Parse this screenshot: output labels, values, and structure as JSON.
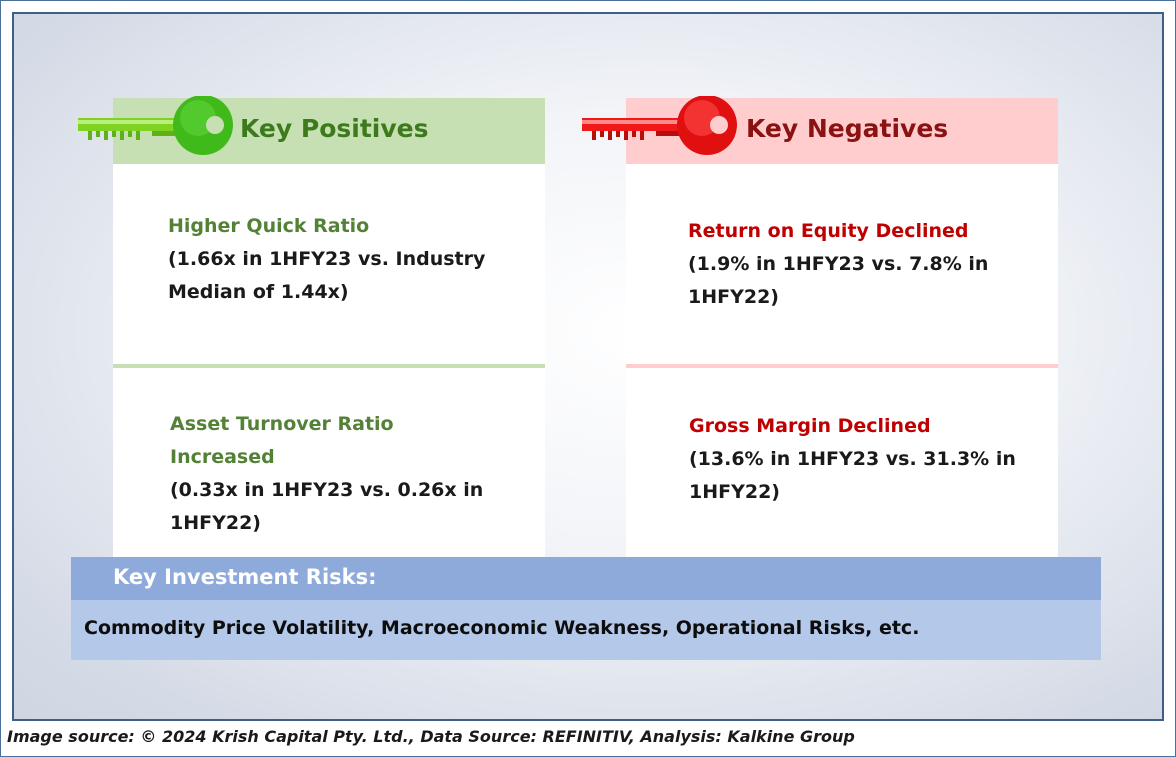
{
  "positives": {
    "title": "Key Positives",
    "items": [
      {
        "title": "Higher Quick Ratio",
        "detail_line1": "(1.66x in 1HFY23 vs. Industry",
        "detail_line2": "Median of 1.44x)"
      },
      {
        "title_line1": "Asset Turnover Ratio",
        "title_line2": "Increased",
        "detail_line1": "(0.33x in 1HFY23 vs. 0.26x in",
        "detail_line2": "1HFY22)"
      }
    ]
  },
  "negatives": {
    "title": "Key Negatives",
    "items": [
      {
        "title": "Return on Equity Declined",
        "detail_line1": "(1.9% in 1HFY23 vs. 7.8% in",
        "detail_line2": "1HFY22)"
      },
      {
        "title": "Gross Margin Declined",
        "detail_line1": "(13.6% in 1HFY23 vs. 31.3% in",
        "detail_line2": "1HFY22)"
      }
    ]
  },
  "risks": {
    "heading": "Key Investment Risks:",
    "text": "Commodity Price Volatility, Macroeconomic Weakness, Operational Risks, etc."
  },
  "footer": "Image source: © 2024 Krish Capital Pty. Ltd., Data Source: REFINITIV, Analysis: Kalkine Group",
  "icons": {
    "positives": "green-key-icon",
    "negatives": "red-key-icon"
  },
  "colors": {
    "positive": "#538135",
    "negative": "#c00000",
    "risk_band": "#8eaadb"
  }
}
